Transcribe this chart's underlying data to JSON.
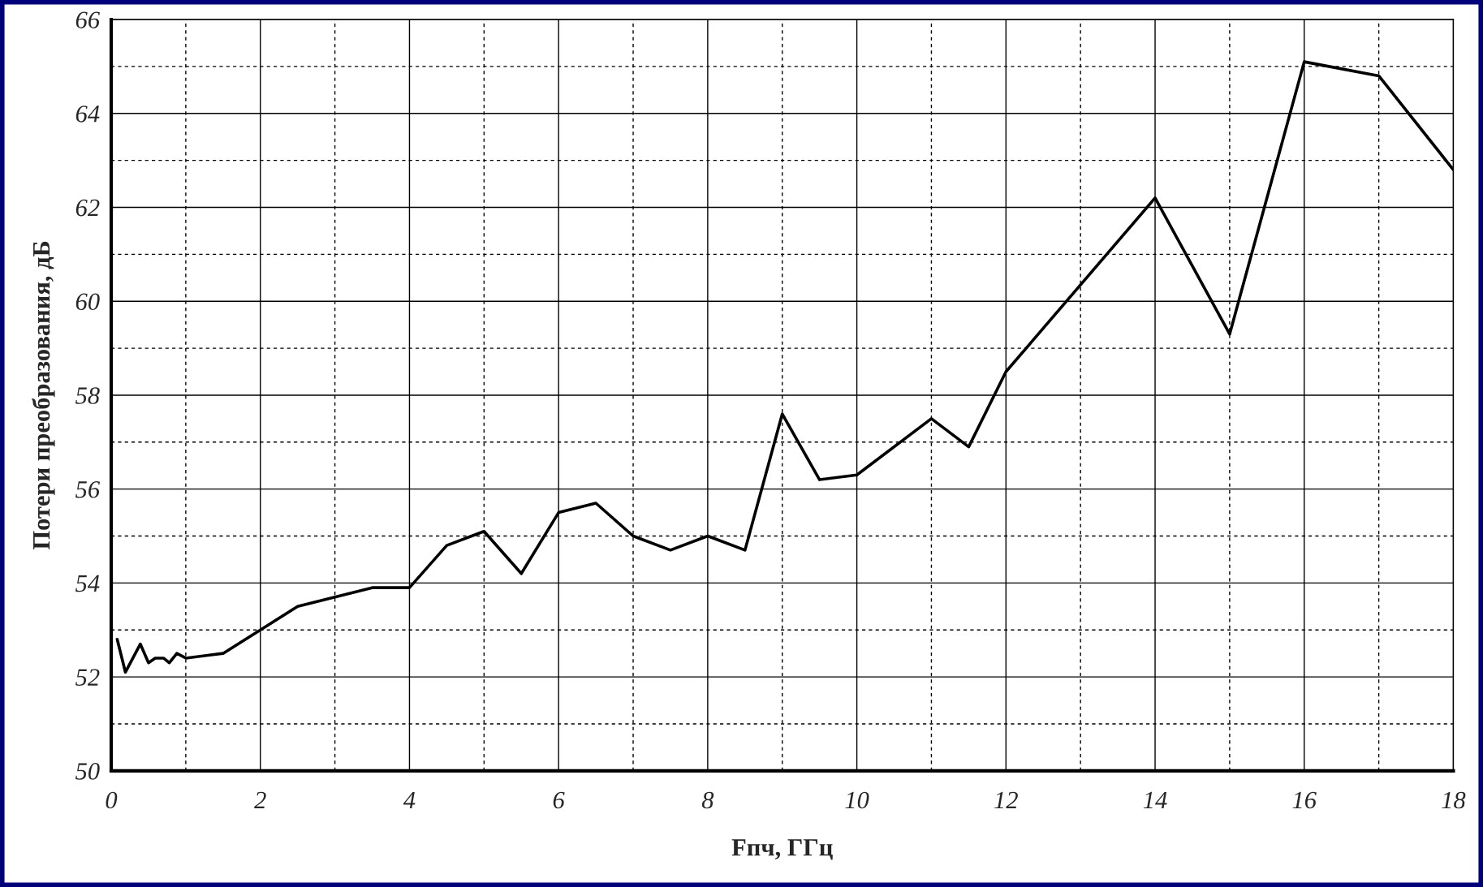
{
  "chart_data": {
    "type": "line",
    "xlabel": "Fпч, ГГц",
    "ylabel": "Потери преобразования, дБ",
    "x": [
      0.08,
      0.19,
      0.39,
      0.5,
      0.59,
      0.7,
      0.78,
      0.88,
      1.0,
      1.5,
      2.5,
      3.5,
      4.0,
      4.5,
      5.0,
      5.5,
      6.0,
      6.5,
      7.0,
      7.5,
      8.0,
      8.5,
      9.0,
      9.5,
      10.0,
      11.0,
      11.5,
      12.0,
      14.0,
      15.0,
      16.0,
      17.0,
      18.0
    ],
    "series": [
      {
        "color": "#000000",
        "values": [
          52.8,
          52.1,
          52.7,
          52.3,
          52.4,
          52.4,
          52.3,
          52.5,
          52.4,
          52.5,
          53.5,
          53.9,
          53.9,
          54.8,
          55.1,
          54.2,
          55.5,
          55.7,
          55.0,
          54.7,
          55.0,
          54.7,
          57.6,
          56.2,
          56.3,
          57.5,
          56.9,
          58.5,
          62.2,
          59.3,
          65.1,
          64.8,
          62.8
        ]
      }
    ],
    "xlim": [
      0,
      18
    ],
    "xticks": [
      0,
      {
        "value": 1,
        "label": null
      },
      2,
      {
        "value": 3,
        "label": null
      },
      4,
      {
        "value": 5,
        "label": null
      },
      6,
      {
        "value": 7,
        "label": null
      },
      8,
      {
        "value": 9,
        "label": null
      },
      10,
      {
        "value": 11,
        "label": null
      },
      12,
      {
        "value": 13,
        "label": null
      },
      14,
      {
        "value": 15,
        "label": null
      },
      16,
      {
        "value": 17,
        "label": null
      },
      18
    ],
    "ylim": [
      50,
      66
    ],
    "yticks": [
      50,
      {
        "value": 51,
        "label": null
      },
      52,
      {
        "value": 53,
        "label": null
      },
      54,
      {
        "value": 55,
        "label": null
      },
      56,
      {
        "value": 57,
        "label": null
      },
      58,
      {
        "value": 59,
        "label": null
      },
      60,
      {
        "value": 61,
        "label": null
      },
      62,
      {
        "value": 63,
        "label": null
      },
      64,
      {
        "value": 65,
        "label": null
      },
      66
    ],
    "grid": true,
    "legend": false,
    "marker": "none",
    "line_style": "solid"
  }
}
